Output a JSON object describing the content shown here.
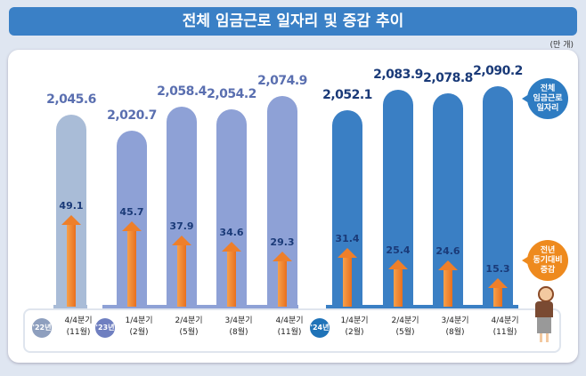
{
  "title": "전체 임금근로 일자리 및 증감 추이",
  "unit": "(만 개)",
  "legend": {
    "total": "전체\n임금근로\n일자리",
    "change": "전년\n동기대비\n증감"
  },
  "colors": {
    "y2022": "#a9bcd7",
    "y2023": "#8ea1d6",
    "y2024": "#3a7fc4",
    "arrow": "#ee7f2a",
    "title_bg": "#3a80c6"
  },
  "chart_data": {
    "type": "bar",
    "unit": "만 개",
    "years": [
      {
        "label": "'22년",
        "color": "#a9bcd7"
      },
      {
        "label": "'23년",
        "color": "#8ea1d6"
      },
      {
        "label": "'24년",
        "color": "#3a7fc4"
      }
    ],
    "categories": [
      {
        "year": 0,
        "quarter": "4/4분기",
        "month": "(11월)"
      },
      {
        "year": 1,
        "quarter": "1/4분기",
        "month": "(2월)"
      },
      {
        "year": 1,
        "quarter": "2/4분기",
        "month": "(5월)"
      },
      {
        "year": 1,
        "quarter": "3/4분기",
        "month": "(8월)"
      },
      {
        "year": 1,
        "quarter": "4/4분기",
        "month": "(11월)"
      },
      {
        "year": 2,
        "quarter": "1/4분기",
        "month": "(2월)"
      },
      {
        "year": 2,
        "quarter": "2/4분기",
        "month": "(5월)"
      },
      {
        "year": 2,
        "quarter": "3/4분기",
        "month": "(8월)"
      },
      {
        "year": 2,
        "quarter": "4/4분기",
        "month": "(11월)"
      }
    ],
    "series": [
      {
        "name": "전체 임금근로 일자리",
        "values": [
          "2,045.6",
          "2,020.7",
          "2,058.4",
          "2,054.2",
          "2,074.9",
          "2,052.1",
          "2,083.9",
          "2,078.8",
          "2,090.2"
        ]
      },
      {
        "name": "전년 동기대비 증감",
        "values": [
          "49.1",
          "45.7",
          "37.9",
          "34.6",
          "29.3",
          "31.4",
          "25.4",
          "24.6",
          "15.3"
        ]
      }
    ]
  }
}
